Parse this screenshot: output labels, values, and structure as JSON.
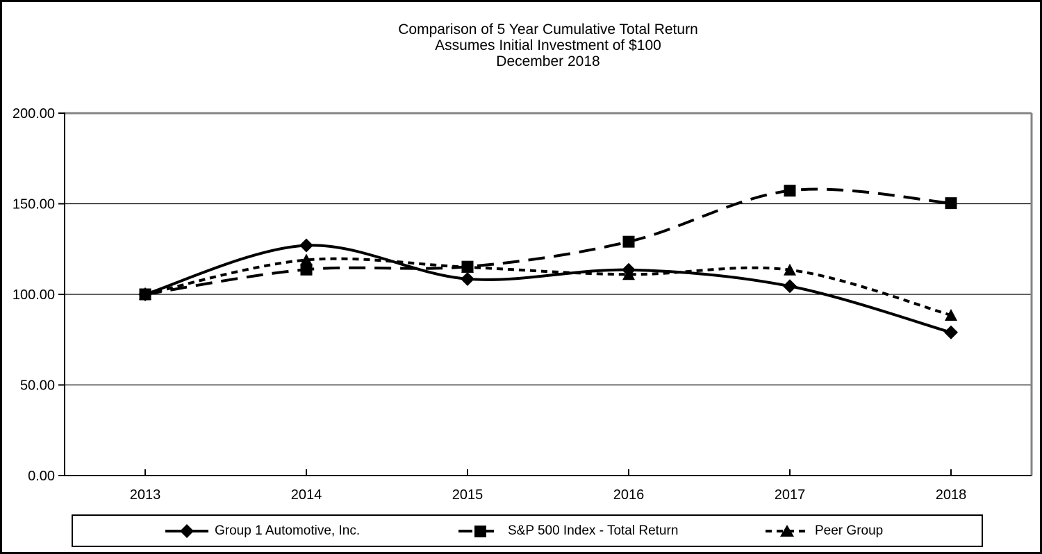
{
  "chart_data": {
    "type": "line",
    "title_lines": [
      "Comparison of 5 Year Cumulative Total Return",
      "Assumes Initial Investment of $100",
      "December 2018"
    ],
    "categories": [
      "2013",
      "2014",
      "2015",
      "2016",
      "2017",
      "2018"
    ],
    "series": [
      {
        "name": "Group 1 Automotive, Inc.",
        "values": [
          100,
          127,
          108.5,
          113.5,
          104.5,
          79
        ],
        "line_style": "solid",
        "marker": "diamond"
      },
      {
        "name": "S&P 500 Index - Total Return",
        "values": [
          100,
          113.69,
          115.26,
          129.05,
          157.22,
          150.33
        ],
        "line_style": "long-dash",
        "marker": "square"
      },
      {
        "name": "Peer Group",
        "values": [
          100,
          119,
          115,
          111,
          113.5,
          88.5
        ],
        "line_style": "short-dash",
        "marker": "triangle"
      }
    ],
    "xlabel": "",
    "ylabel": "",
    "ylim": [
      0,
      200
    ],
    "y_tick_values": [
      0,
      50,
      100,
      150,
      200
    ],
    "y_tick_labels": [
      "0.00",
      "50.00",
      "100.00",
      "150.00",
      "200.00"
    ],
    "grid": true,
    "smooth_lines": true,
    "legend_position": "bottom-box",
    "colors": {
      "series": "#000000",
      "gridline": "#000000",
      "axis": "#000000",
      "plot_border": "#848484",
      "background": "#ffffff"
    }
  }
}
